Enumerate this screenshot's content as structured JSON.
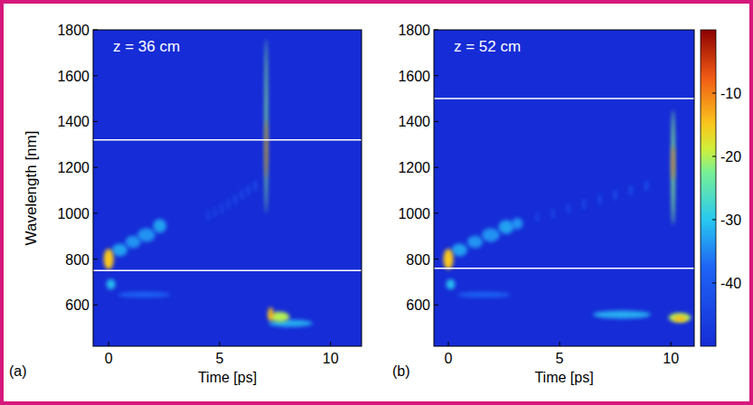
{
  "chart_data": [
    {
      "type": "heatmap",
      "panel_label": "(a)",
      "annotation": "z = 36 cm",
      "xlabel": "Time [ps]",
      "ylabel": "Wavelength [nm]",
      "xlim": [
        -0.7,
        11.4
      ],
      "ylim": [
        420,
        1800
      ],
      "xticks": [
        0,
        5,
        10
      ],
      "yticks": [
        600,
        800,
        1000,
        1200,
        1400,
        1600,
        1800
      ],
      "hlines": [
        750,
        1320
      ],
      "spots": [
        {
          "time": 1.6,
          "wavelength": 645,
          "time_width": 2.4,
          "wavelength_width": 25,
          "level": -38
        },
        {
          "time": 0.1,
          "wavelength": 690,
          "time_width": 0.4,
          "wavelength_width": 45,
          "level": -31
        },
        {
          "time": 0.5,
          "wavelength": 840,
          "time_width": 0.7,
          "wavelength_width": 55,
          "level": -33
        },
        {
          "time": 1.1,
          "wavelength": 875,
          "time_width": 0.7,
          "wavelength_width": 55,
          "level": -34
        },
        {
          "time": 1.7,
          "wavelength": 905,
          "time_width": 0.8,
          "wavelength_width": 60,
          "level": -34
        },
        {
          "time": 2.3,
          "wavelength": 945,
          "time_width": 0.6,
          "wavelength_width": 60,
          "level": -33
        },
        {
          "time": 4.5,
          "wavelength": 990,
          "time_width": 0.12,
          "wavelength_width": 50,
          "level": -43
        },
        {
          "time": 4.8,
          "wavelength": 1005,
          "time_width": 0.12,
          "wavelength_width": 50,
          "level": -43
        },
        {
          "time": 5.1,
          "wavelength": 1020,
          "time_width": 0.12,
          "wavelength_width": 50,
          "level": -42
        },
        {
          "time": 5.4,
          "wavelength": 1040,
          "time_width": 0.12,
          "wavelength_width": 50,
          "level": -42
        },
        {
          "time": 5.7,
          "wavelength": 1060,
          "time_width": 0.12,
          "wavelength_width": 50,
          "level": -41
        },
        {
          "time": 6.0,
          "wavelength": 1080,
          "time_width": 0.12,
          "wavelength_width": 50,
          "level": -41
        },
        {
          "time": 6.3,
          "wavelength": 1100,
          "time_width": 0.12,
          "wavelength_width": 50,
          "level": -40
        },
        {
          "time": 6.6,
          "wavelength": 1120,
          "time_width": 0.12,
          "wavelength_width": 50,
          "level": -40
        },
        {
          "time": 8.2,
          "wavelength": 520,
          "time_width": 2.0,
          "wavelength_width": 30,
          "level": -32
        },
        {
          "time": 7.7,
          "wavelength": 548,
          "time_width": 0.9,
          "wavelength_width": 45,
          "level": -20
        },
        {
          "time": 7.3,
          "wavelength": 560,
          "time_width": 0.25,
          "wavelength_width": 60,
          "level": -14
        },
        {
          "time": 0,
          "wavelength": 800,
          "time_width": 0.45,
          "wavelength_width": 90,
          "level": -15
        },
        {
          "time": 7.1,
          "wavelength": 1380,
          "time_width": 0.12,
          "wavelength_width": 760,
          "level": -22
        },
        {
          "time": 7.1,
          "wavelength": 1280,
          "time_width": 0.08,
          "wavelength_width": 260,
          "level": -6
        }
      ]
    },
    {
      "type": "heatmap",
      "panel_label": "(b)",
      "annotation": "z = 52 cm",
      "xlabel": "Time [ps]",
      "xlim": [
        -0.65,
        11.05
      ],
      "ylim": [
        420,
        1800
      ],
      "xticks": [
        0,
        5,
        10
      ],
      "yticks": [
        600,
        800,
        1000,
        1200,
        1400,
        1600,
        1800
      ],
      "hlines": [
        760,
        1500
      ],
      "spots": [
        {
          "time": 1.6,
          "wavelength": 645,
          "time_width": 2.4,
          "wavelength_width": 25,
          "level": -38
        },
        {
          "time": 0.1,
          "wavelength": 690,
          "time_width": 0.4,
          "wavelength_width": 45,
          "level": -31
        },
        {
          "time": 0.5,
          "wavelength": 840,
          "time_width": 0.7,
          "wavelength_width": 55,
          "level": -33
        },
        {
          "time": 1.2,
          "wavelength": 875,
          "time_width": 0.7,
          "wavelength_width": 55,
          "level": -34
        },
        {
          "time": 1.9,
          "wavelength": 905,
          "time_width": 0.8,
          "wavelength_width": 60,
          "level": -34
        },
        {
          "time": 2.6,
          "wavelength": 940,
          "time_width": 0.7,
          "wavelength_width": 60,
          "level": -33
        },
        {
          "time": 3.1,
          "wavelength": 955,
          "time_width": 0.5,
          "wavelength_width": 50,
          "level": -34
        },
        {
          "time": 4.0,
          "wavelength": 985,
          "time_width": 0.14,
          "wavelength_width": 50,
          "level": -44
        },
        {
          "time": 4.7,
          "wavelength": 1000,
          "time_width": 0.14,
          "wavelength_width": 50,
          "level": -43
        },
        {
          "time": 5.4,
          "wavelength": 1020,
          "time_width": 0.14,
          "wavelength_width": 50,
          "level": -43
        },
        {
          "time": 6.1,
          "wavelength": 1040,
          "time_width": 0.14,
          "wavelength_width": 50,
          "level": -42
        },
        {
          "time": 6.8,
          "wavelength": 1060,
          "time_width": 0.14,
          "wavelength_width": 50,
          "level": -42
        },
        {
          "time": 7.5,
          "wavelength": 1080,
          "time_width": 0.14,
          "wavelength_width": 50,
          "level": -41
        },
        {
          "time": 8.2,
          "wavelength": 1100,
          "time_width": 0.14,
          "wavelength_width": 50,
          "level": -41
        },
        {
          "time": 8.9,
          "wavelength": 1120,
          "time_width": 0.14,
          "wavelength_width": 50,
          "level": -40
        },
        {
          "time": 7.8,
          "wavelength": 558,
          "time_width": 2.6,
          "wavelength_width": 35,
          "level": -32
        },
        {
          "time": 10.4,
          "wavelength": 545,
          "time_width": 1.0,
          "wavelength_width": 40,
          "level": -20
        },
        {
          "time": 10.4,
          "wavelength": 540,
          "time_width": 0.6,
          "wavelength_width": 25,
          "level": -14
        },
        {
          "time": 0,
          "wavelength": 800,
          "time_width": 0.45,
          "wavelength_width": 90,
          "level": -15
        },
        {
          "time": 10.1,
          "wavelength": 1200,
          "time_width": 0.15,
          "wavelength_width": 500,
          "level": -22
        },
        {
          "time": 10.1,
          "wavelength": 1220,
          "time_width": 0.1,
          "wavelength_width": 150,
          "level": -8
        }
      ],
      "colorbar": {
        "range": [
          -50,
          0
        ],
        "ticks": [
          -10,
          -20,
          -30,
          -40
        ]
      }
    }
  ]
}
